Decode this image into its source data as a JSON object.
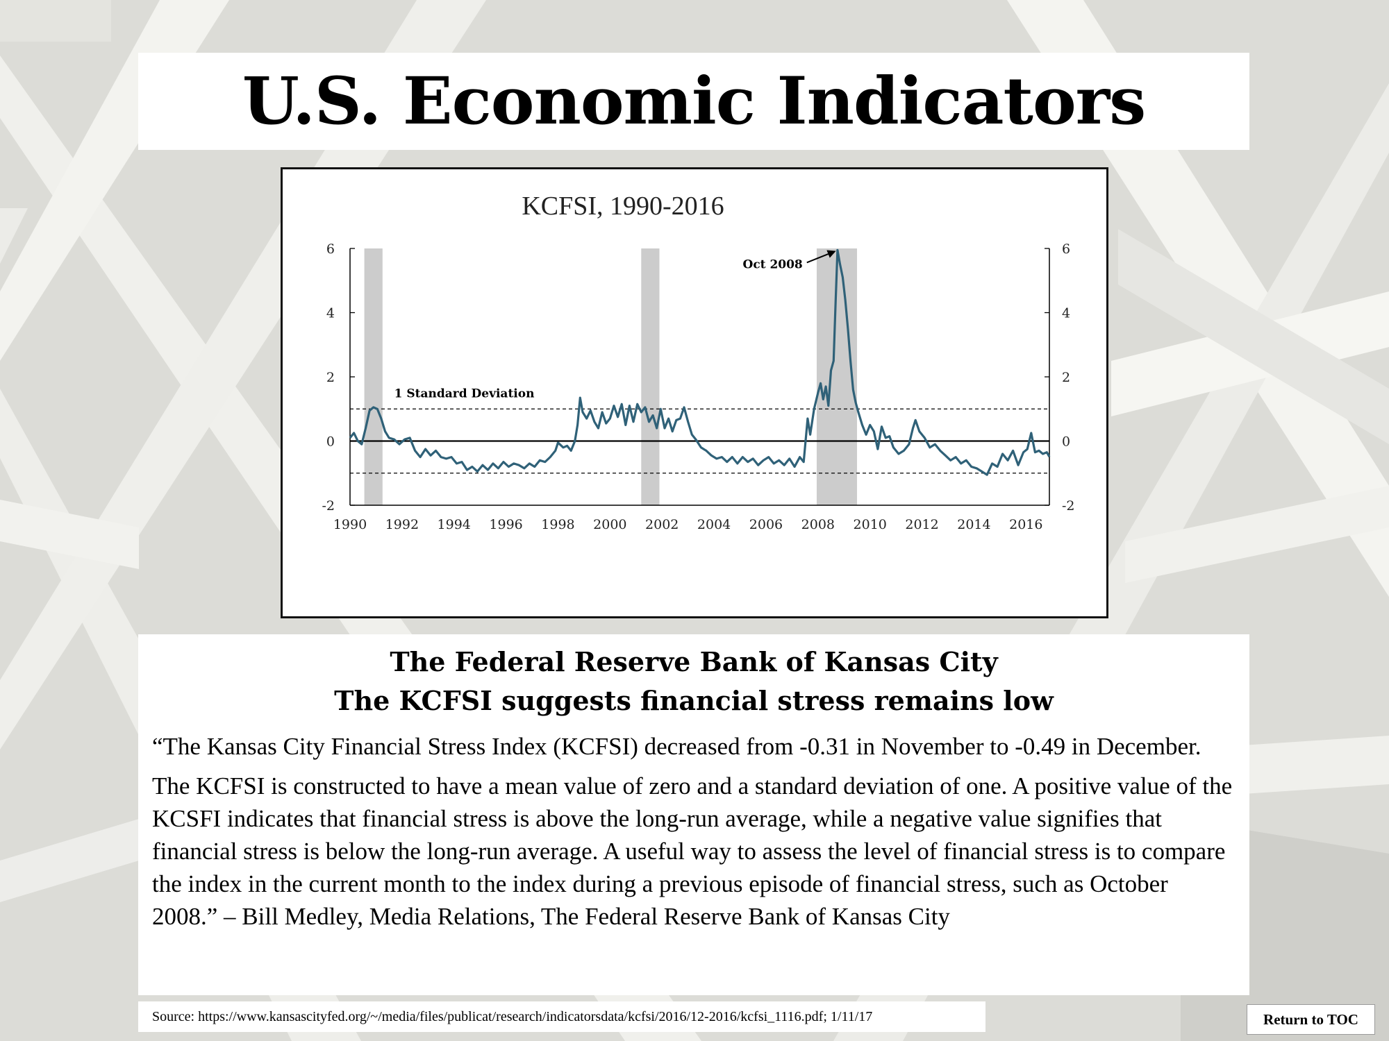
{
  "page": {
    "title": "U.S. Economic Indicators"
  },
  "chart_data": {
    "type": "line",
    "title": "KCFSI, 1990-2016",
    "xlabel": "",
    "ylabel": "",
    "xlim": [
      1990,
      2016.9
    ],
    "ylim": [
      -2,
      6
    ],
    "x_ticks": [
      1990,
      1992,
      1994,
      1996,
      1998,
      2000,
      2002,
      2004,
      2006,
      2008,
      2010,
      2012,
      2014,
      2016
    ],
    "y_ticks": [
      -2,
      0,
      2,
      4,
      6
    ],
    "x_tick_labels": [
      "1990",
      "1992",
      "1994",
      "1996",
      "1998",
      "2000",
      "2002",
      "2004",
      "2006",
      "2008",
      "2010",
      "2012",
      "2014",
      "2016"
    ],
    "y_tick_labels": [
      "-2",
      "0",
      "2",
      "4",
      "6"
    ],
    "right_axis": true,
    "grid": false,
    "legend": "none",
    "recession_bands": [
      [
        1990.55,
        1991.25
      ],
      [
        2001.2,
        2001.9
      ],
      [
        2007.95,
        2009.5
      ]
    ],
    "reference_lines": [
      {
        "y": 0,
        "style": "solid"
      },
      {
        "y": 1,
        "style": "dashed",
        "label": "1 Standard Deviation"
      },
      {
        "y": -1,
        "style": "dashed"
      }
    ],
    "annotation": {
      "text": "Oct 2008",
      "x": 2008.8,
      "y": 5.95
    },
    "series_color": "#2f6178",
    "series": [
      {
        "values": [
          [
            1990.0,
            0.1
          ],
          [
            1990.15,
            0.25
          ],
          [
            1990.3,
            0.0
          ],
          [
            1990.45,
            -0.1
          ],
          [
            1990.6,
            0.4
          ],
          [
            1990.75,
            0.95
          ],
          [
            1990.9,
            1.05
          ],
          [
            1991.05,
            1.0
          ],
          [
            1991.2,
            0.7
          ],
          [
            1991.35,
            0.3
          ],
          [
            1991.5,
            0.1
          ],
          [
            1991.7,
            0.05
          ],
          [
            1991.9,
            -0.1
          ],
          [
            1992.1,
            0.05
          ],
          [
            1992.3,
            0.1
          ],
          [
            1992.5,
            -0.3
          ],
          [
            1992.7,
            -0.5
          ],
          [
            1992.9,
            -0.25
          ],
          [
            1993.1,
            -0.45
          ],
          [
            1993.3,
            -0.3
          ],
          [
            1993.5,
            -0.5
          ],
          [
            1993.7,
            -0.55
          ],
          [
            1993.9,
            -0.5
          ],
          [
            1994.1,
            -0.7
          ],
          [
            1994.3,
            -0.65
          ],
          [
            1994.5,
            -0.9
          ],
          [
            1994.7,
            -0.8
          ],
          [
            1994.9,
            -0.95
          ],
          [
            1995.1,
            -0.75
          ],
          [
            1995.3,
            -0.9
          ],
          [
            1995.5,
            -0.7
          ],
          [
            1995.7,
            -0.85
          ],
          [
            1995.9,
            -0.65
          ],
          [
            1996.1,
            -0.8
          ],
          [
            1996.3,
            -0.7
          ],
          [
            1996.5,
            -0.75
          ],
          [
            1996.7,
            -0.85
          ],
          [
            1996.9,
            -0.7
          ],
          [
            1997.1,
            -0.8
          ],
          [
            1997.3,
            -0.6
          ],
          [
            1997.5,
            -0.65
          ],
          [
            1997.7,
            -0.5
          ],
          [
            1997.9,
            -0.3
          ],
          [
            1998.0,
            -0.05
          ],
          [
            1998.2,
            -0.2
          ],
          [
            1998.35,
            -0.15
          ],
          [
            1998.5,
            -0.3
          ],
          [
            1998.65,
            0.0
          ],
          [
            1998.75,
            0.5
          ],
          [
            1998.85,
            1.35
          ],
          [
            1998.95,
            0.9
          ],
          [
            1999.1,
            0.7
          ],
          [
            1999.25,
            0.95
          ],
          [
            1999.4,
            0.6
          ],
          [
            1999.55,
            0.4
          ],
          [
            1999.7,
            0.9
          ],
          [
            1999.85,
            0.55
          ],
          [
            2000.0,
            0.7
          ],
          [
            2000.15,
            1.1
          ],
          [
            2000.3,
            0.75
          ],
          [
            2000.45,
            1.15
          ],
          [
            2000.6,
            0.5
          ],
          [
            2000.75,
            1.1
          ],
          [
            2000.9,
            0.6
          ],
          [
            2001.05,
            1.15
          ],
          [
            2001.2,
            0.9
          ],
          [
            2001.35,
            1.05
          ],
          [
            2001.5,
            0.6
          ],
          [
            2001.65,
            0.8
          ],
          [
            2001.8,
            0.4
          ],
          [
            2001.95,
            1.0
          ],
          [
            2002.1,
            0.4
          ],
          [
            2002.25,
            0.7
          ],
          [
            2002.4,
            0.3
          ],
          [
            2002.55,
            0.65
          ],
          [
            2002.7,
            0.7
          ],
          [
            2002.85,
            1.05
          ],
          [
            2003.0,
            0.6
          ],
          [
            2003.15,
            0.2
          ],
          [
            2003.3,
            0.05
          ],
          [
            2003.5,
            -0.2
          ],
          [
            2003.7,
            -0.3
          ],
          [
            2003.9,
            -0.45
          ],
          [
            2004.1,
            -0.55
          ],
          [
            2004.3,
            -0.5
          ],
          [
            2004.5,
            -0.65
          ],
          [
            2004.7,
            -0.5
          ],
          [
            2004.9,
            -0.7
          ],
          [
            2005.1,
            -0.5
          ],
          [
            2005.3,
            -0.65
          ],
          [
            2005.5,
            -0.55
          ],
          [
            2005.7,
            -0.75
          ],
          [
            2005.9,
            -0.6
          ],
          [
            2006.1,
            -0.5
          ],
          [
            2006.3,
            -0.7
          ],
          [
            2006.5,
            -0.6
          ],
          [
            2006.7,
            -0.75
          ],
          [
            2006.9,
            -0.55
          ],
          [
            2007.1,
            -0.8
          ],
          [
            2007.3,
            -0.5
          ],
          [
            2007.45,
            -0.65
          ],
          [
            2007.6,
            0.7
          ],
          [
            2007.7,
            0.2
          ],
          [
            2007.85,
            1.0
          ],
          [
            2008.0,
            1.5
          ],
          [
            2008.1,
            1.8
          ],
          [
            2008.2,
            1.3
          ],
          [
            2008.3,
            1.7
          ],
          [
            2008.4,
            1.1
          ],
          [
            2008.5,
            2.2
          ],
          [
            2008.6,
            2.5
          ],
          [
            2008.68,
            4.4
          ],
          [
            2008.75,
            5.95
          ],
          [
            2008.85,
            5.5
          ],
          [
            2008.95,
            5.1
          ],
          [
            2009.05,
            4.4
          ],
          [
            2009.15,
            3.5
          ],
          [
            2009.25,
            2.5
          ],
          [
            2009.35,
            1.6
          ],
          [
            2009.45,
            1.2
          ],
          [
            2009.55,
            0.9
          ],
          [
            2009.7,
            0.5
          ],
          [
            2009.85,
            0.2
          ],
          [
            2010.0,
            0.5
          ],
          [
            2010.15,
            0.3
          ],
          [
            2010.3,
            -0.25
          ],
          [
            2010.45,
            0.45
          ],
          [
            2010.6,
            0.1
          ],
          [
            2010.75,
            0.15
          ],
          [
            2010.9,
            -0.2
          ],
          [
            2011.1,
            -0.4
          ],
          [
            2011.3,
            -0.3
          ],
          [
            2011.5,
            -0.1
          ],
          [
            2011.65,
            0.4
          ],
          [
            2011.75,
            0.65
          ],
          [
            2011.9,
            0.3
          ],
          [
            2012.1,
            0.1
          ],
          [
            2012.3,
            -0.2
          ],
          [
            2012.5,
            -0.1
          ],
          [
            2012.7,
            -0.3
          ],
          [
            2012.9,
            -0.45
          ],
          [
            2013.1,
            -0.6
          ],
          [
            2013.3,
            -0.5
          ],
          [
            2013.5,
            -0.7
          ],
          [
            2013.7,
            -0.6
          ],
          [
            2013.9,
            -0.8
          ],
          [
            2014.1,
            -0.85
          ],
          [
            2014.3,
            -0.95
          ],
          [
            2014.5,
            -1.05
          ],
          [
            2014.7,
            -0.7
          ],
          [
            2014.9,
            -0.8
          ],
          [
            2015.1,
            -0.4
          ],
          [
            2015.3,
            -0.6
          ],
          [
            2015.5,
            -0.3
          ],
          [
            2015.7,
            -0.75
          ],
          [
            2015.9,
            -0.35
          ],
          [
            2016.05,
            -0.25
          ],
          [
            2016.2,
            0.25
          ],
          [
            2016.35,
            -0.35
          ],
          [
            2016.5,
            -0.3
          ],
          [
            2016.65,
            -0.4
          ],
          [
            2016.8,
            -0.35
          ],
          [
            2016.9,
            -0.49
          ]
        ]
      }
    ]
  },
  "text": {
    "heading1": "The Federal Reserve Bank of Kansas City",
    "heading2": "The KCFSI suggests financial stress remains low",
    "paragraph1": "“The Kansas City Financial Stress Index (KCFSI) decreased from -0.31 in November to -0.49 in December.",
    "paragraph2": "The KCFSI is constructed to have a mean value of zero and a standard deviation of one.  A positive value of the KCSFI indicates that financial stress is above the long-run average, while a negative value signifies that financial stress is below the long-run average.  A useful way to assess the level of financial stress is to compare the index in the current month to the index during a previous episode of financial stress, such as October 2008.” – Bill Medley, Media Relations, The Federal Reserve Bank of Kansas City"
  },
  "footer": {
    "source": "Source: https://www.kansascityfed.org/~/media/files/publicat/research/indicatorsdata/kcfsi/2016/12-2016/kcfsi_1116.pdf; 1/11/17",
    "return_label": "Return to TOC"
  }
}
